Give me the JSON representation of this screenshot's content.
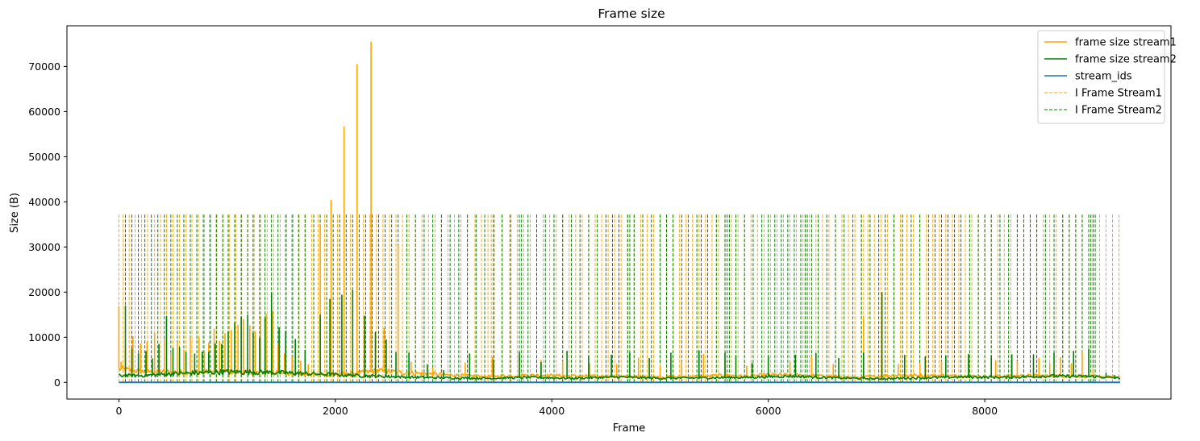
{
  "chart_data": {
    "type": "line",
    "title": "Frame size",
    "xlabel": "Frame",
    "ylabel": "Size (B)",
    "xlim": [
      -480,
      9720
    ],
    "ylim": [
      -3700,
      79000
    ],
    "x_ticks": [
      0,
      2000,
      4000,
      6000,
      8000
    ],
    "x_tick_labels": [
      "0",
      "2000",
      "4000",
      "6000",
      "8000"
    ],
    "y_ticks": [
      0,
      10000,
      20000,
      30000,
      40000,
      50000,
      60000,
      70000
    ],
    "y_tick_labels": [
      "0",
      "10000",
      "20000",
      "30000",
      "40000",
      "50000",
      "60000",
      "70000"
    ],
    "grid": false,
    "legend_position": "top-right",
    "series": [
      {
        "name": "frame size stream1",
        "color": "#ffa500",
        "style": "solid",
        "baseline": [
          [
            0,
            3000
          ],
          [
            200,
            2400
          ],
          [
            600,
            2300
          ],
          [
            1000,
            2300
          ],
          [
            1400,
            2200
          ],
          [
            1800,
            1700
          ],
          [
            2200,
            2000
          ],
          [
            2400,
            2600
          ],
          [
            2600,
            2200
          ],
          [
            3000,
            1700
          ],
          [
            3400,
            1300
          ],
          [
            3800,
            1600
          ],
          [
            4200,
            1400
          ],
          [
            4600,
            1300
          ],
          [
            5000,
            1200
          ],
          [
            5400,
            1300
          ],
          [
            5600,
            1600
          ],
          [
            5800,
            1300
          ],
          [
            6000,
            1700
          ],
          [
            6400,
            1500
          ],
          [
            6800,
            1100
          ],
          [
            7200,
            1600
          ],
          [
            7600,
            1500
          ],
          [
            8000,
            1300
          ],
          [
            8400,
            1500
          ],
          [
            8800,
            1400
          ],
          [
            9000,
            1300
          ],
          [
            9200,
            1200
          ],
          [
            9250,
            1200
          ]
        ],
        "spikes": [
          [
            0,
            16800
          ],
          [
            20,
            4500
          ],
          [
            60,
            7700
          ],
          [
            130,
            10100
          ],
          [
            200,
            8500
          ],
          [
            260,
            9000
          ],
          [
            330,
            10800
          ],
          [
            420,
            9500
          ],
          [
            480,
            6500
          ],
          [
            540,
            8800
          ],
          [
            600,
            7200
          ],
          [
            660,
            9900
          ],
          [
            740,
            10000
          ],
          [
            790,
            6800
          ],
          [
            830,
            8700
          ],
          [
            880,
            11800
          ],
          [
            930,
            9100
          ],
          [
            980,
            10800
          ],
          [
            1040,
            11500
          ],
          [
            1100,
            12600
          ],
          [
            1150,
            13900
          ],
          [
            1210,
            12500
          ],
          [
            1260,
            11200
          ],
          [
            1310,
            14600
          ],
          [
            1360,
            15100
          ],
          [
            1420,
            15700
          ],
          [
            1470,
            8300
          ],
          [
            1530,
            6300
          ],
          [
            1600,
            5600
          ],
          [
            1680,
            4700
          ],
          [
            1750,
            3900
          ],
          [
            1860,
            35000
          ],
          [
            1960,
            40300
          ],
          [
            2080,
            56600
          ],
          [
            2200,
            70400
          ],
          [
            2330,
            75400
          ],
          [
            2450,
            11900
          ],
          [
            2580,
            30300
          ],
          [
            2700,
            4500
          ],
          [
            2900,
            3200
          ],
          [
            3200,
            4300
          ],
          [
            3450,
            5500
          ],
          [
            3700,
            6000
          ],
          [
            3900,
            4900
          ],
          [
            4100,
            4600
          ],
          [
            4350,
            4100
          ],
          [
            4600,
            4000
          ],
          [
            4800,
            5400
          ],
          [
            5000,
            3800
          ],
          [
            5200,
            4500
          ],
          [
            5400,
            6200
          ],
          [
            5600,
            4900
          ],
          [
            5800,
            3600
          ],
          [
            6000,
            4900
          ],
          [
            6200,
            4500
          ],
          [
            6400,
            5600
          ],
          [
            6600,
            4000
          ],
          [
            6880,
            14600
          ],
          [
            7050,
            5200
          ],
          [
            7200,
            4000
          ],
          [
            7400,
            4200
          ],
          [
            7600,
            4600
          ],
          [
            7850,
            5800
          ],
          [
            8100,
            4800
          ],
          [
            8300,
            4600
          ],
          [
            8500,
            5300
          ],
          [
            8600,
            4100
          ],
          [
            8700,
            5500
          ],
          [
            8800,
            4100
          ],
          [
            8900,
            6800
          ],
          [
            9000,
            2900
          ],
          [
            9100,
            1300
          ]
        ]
      },
      {
        "name": "frame size stream2",
        "color": "#008000",
        "style": "solid",
        "baseline": [
          [
            0,
            1500
          ],
          [
            200,
            1500
          ],
          [
            600,
            2000
          ],
          [
            1000,
            2300
          ],
          [
            1400,
            2200
          ],
          [
            1800,
            1900
          ],
          [
            2200,
            1500
          ],
          [
            2600,
            1200
          ],
          [
            3000,
            1000
          ],
          [
            3400,
            900
          ],
          [
            3800,
            1100
          ],
          [
            4200,
            900
          ],
          [
            4600,
            1200
          ],
          [
            5000,
            900
          ],
          [
            5400,
            1000
          ],
          [
            5800,
            1100
          ],
          [
            6200,
            1400
          ],
          [
            6600,
            1000
          ],
          [
            7000,
            800
          ],
          [
            7400,
            1000
          ],
          [
            7800,
            1200
          ],
          [
            8200,
            1100
          ],
          [
            8600,
            1400
          ],
          [
            9000,
            1300
          ],
          [
            9200,
            1000
          ],
          [
            9250,
            900
          ]
        ],
        "spikes": [
          [
            60,
            16900
          ],
          [
            120,
            7400
          ],
          [
            180,
            6300
          ],
          [
            250,
            6800
          ],
          [
            310,
            5200
          ],
          [
            370,
            8400
          ],
          [
            440,
            14600
          ],
          [
            500,
            7500
          ],
          [
            560,
            7800
          ],
          [
            620,
            6700
          ],
          [
            700,
            6300
          ],
          [
            770,
            6700
          ],
          [
            830,
            6600
          ],
          [
            890,
            8500
          ],
          [
            950,
            8400
          ],
          [
            1010,
            11200
          ],
          [
            1070,
            13100
          ],
          [
            1130,
            14500
          ],
          [
            1190,
            14800
          ],
          [
            1240,
            10900
          ],
          [
            1300,
            9800
          ],
          [
            1350,
            14300
          ],
          [
            1410,
            19900
          ],
          [
            1480,
            12100
          ],
          [
            1540,
            11300
          ],
          [
            1630,
            9500
          ],
          [
            1720,
            7100
          ],
          [
            1860,
            14900
          ],
          [
            1950,
            18400
          ],
          [
            2060,
            19300
          ],
          [
            2160,
            20300
          ],
          [
            2270,
            14700
          ],
          [
            2370,
            11100
          ],
          [
            2470,
            9400
          ],
          [
            2560,
            6600
          ],
          [
            2680,
            6500
          ],
          [
            2850,
            3900
          ],
          [
            3000,
            2600
          ],
          [
            3240,
            6300
          ],
          [
            3460,
            5000
          ],
          [
            3700,
            6700
          ],
          [
            3900,
            4400
          ],
          [
            4140,
            6900
          ],
          [
            4340,
            5800
          ],
          [
            4550,
            6000
          ],
          [
            4720,
            6500
          ],
          [
            4900,
            5300
          ],
          [
            5100,
            6500
          ],
          [
            5360,
            7000
          ],
          [
            5600,
            6500
          ],
          [
            5700,
            5900
          ],
          [
            5850,
            4200
          ],
          [
            6000,
            5900
          ],
          [
            6250,
            6000
          ],
          [
            6440,
            6400
          ],
          [
            6650,
            5300
          ],
          [
            6880,
            6500
          ],
          [
            7050,
            19900
          ],
          [
            7260,
            6000
          ],
          [
            7450,
            5700
          ],
          [
            7640,
            5900
          ],
          [
            7850,
            6200
          ],
          [
            8060,
            5900
          ],
          [
            8250,
            6100
          ],
          [
            8450,
            6100
          ],
          [
            8640,
            6500
          ],
          [
            8820,
            6900
          ],
          [
            8960,
            7300
          ],
          [
            9120,
            2000
          ],
          [
            9200,
            1500
          ]
        ]
      },
      {
        "name": "stream_ids",
        "color": "#1f77b4",
        "style": "solid",
        "points": [
          [
            0,
            0
          ],
          [
            9250,
            0
          ]
        ]
      },
      {
        "name": "I Frame Stream1",
        "color": "#ffa500",
        "style": "dashed",
        "y_range": [
          0,
          37500
        ],
        "x": [
          0,
          40,
          95,
          150,
          210,
          265,
          330,
          385,
          440,
          500,
          560,
          620,
          675,
          735,
          790,
          850,
          905,
          960,
          1020,
          1080,
          1135,
          1190,
          1250,
          1310,
          1370,
          1430,
          1490,
          1550,
          1610,
          1665,
          1720,
          1780,
          1840,
          1900,
          1960,
          2020,
          2080,
          2140,
          2200,
          2260,
          2320,
          2380,
          2440,
          2500,
          2560,
          2620,
          2680,
          2740,
          2800,
          2860,
          2920,
          2980,
          3040,
          3100,
          3160,
          3220,
          3290,
          3350,
          3410,
          3440,
          3470,
          3540,
          3610,
          3680,
          3740,
          3800,
          3860,
          3920,
          3980,
          4040,
          4100,
          4160,
          4220,
          4280,
          4340,
          4400,
          4460,
          4520,
          4580,
          4640,
          4700,
          4760,
          4820,
          4880,
          4940,
          5000,
          5060,
          5120,
          5180,
          5240,
          5300,
          5360,
          5420,
          5480,
          5540,
          5600,
          5660,
          5720,
          5780,
          5840,
          5900,
          5960,
          6020,
          6080,
          6140,
          6200,
          6260,
          6320,
          6380,
          6440,
          6500,
          6560,
          6620,
          6680,
          6740,
          6800,
          6860,
          6880,
          6920,
          6980,
          7040,
          7100,
          7160,
          7220,
          7280,
          7340,
          7400,
          7460,
          7520,
          7580,
          7640,
          7700,
          7760,
          7820,
          7880,
          7940,
          8000,
          8060,
          8120,
          8180,
          8240,
          8300,
          8360,
          8420,
          8480,
          8540,
          8600,
          8660,
          8720,
          8780,
          8840,
          8900,
          8960,
          9000,
          9060,
          9120,
          9180,
          9240
        ]
      },
      {
        "name": "I Frame Stream2",
        "color": "#008000",
        "style": "dashed",
        "y_range": [
          0,
          37500
        ],
        "x": [
          60,
          120,
          180,
          240,
          300,
          360,
          420,
          480,
          540,
          600,
          660,
          720,
          780,
          840,
          900,
          960,
          1010,
          1070,
          1130,
          1190,
          1240,
          1300,
          1350,
          1410,
          1470,
          1540,
          1600,
          1660,
          1720,
          1800,
          1860,
          1920,
          1980,
          2040,
          2100,
          2160,
          2220,
          2280,
          2340,
          2400,
          2460,
          2520,
          2580,
          2660,
          2740,
          2820,
          2900,
          2980,
          3060,
          3140,
          3220,
          3300,
          3380,
          3460,
          3540,
          3620,
          3700,
          3720,
          3780,
          3860,
          3940,
          4020,
          4100,
          4180,
          4260,
          4340,
          4420,
          4500,
          4560,
          4620,
          4700,
          4720,
          4760,
          4840,
          4920,
          5000,
          5060,
          5120,
          5200,
          5260,
          5340,
          5380,
          5440,
          5520,
          5600,
          5620,
          5640,
          5700,
          5780,
          5860,
          5940,
          6000,
          6060,
          6120,
          6180,
          6240,
          6300,
          6340,
          6360,
          6400,
          6460,
          6540,
          6620,
          6700,
          6780,
          6860,
          6940,
          7020,
          7080,
          7160,
          7240,
          7320,
          7400,
          7480,
          7540,
          7600,
          7660,
          7720,
          7780,
          7860,
          7940,
          8000,
          8060,
          8140,
          8220,
          8300,
          8360,
          8420,
          8480,
          8560,
          8640,
          8720,
          8780,
          8840,
          8900,
          8960,
          8980,
          9000,
          9020
        ]
      }
    ]
  }
}
